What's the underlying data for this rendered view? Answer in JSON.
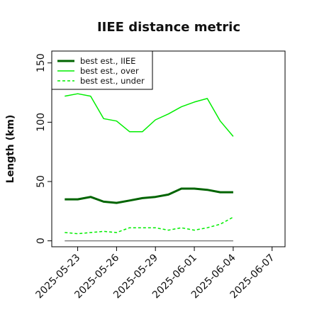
{
  "chart_data": {
    "type": "line",
    "title": "IIEE distance metric",
    "xlabel": "",
    "ylabel": "Length (km)",
    "x": [
      "2025-05-22",
      "2025-05-23",
      "2025-05-24",
      "2025-05-25",
      "2025-05-26",
      "2025-05-27",
      "2025-05-28",
      "2025-05-29",
      "2025-05-30",
      "2025-05-31",
      "2025-06-01",
      "2025-06-02",
      "2025-06-03",
      "2025-06-04"
    ],
    "xlim": [
      "2025-05-21",
      "2025-06-08"
    ],
    "xticks": [
      "2025-05-23",
      "2025-05-26",
      "2025-05-29",
      "2025-06-01",
      "2025-06-04",
      "2025-06-07"
    ],
    "ylim": [
      -5,
      160
    ],
    "yticks": [
      0,
      50,
      100,
      150
    ],
    "grid": false,
    "legend_position": "top-left",
    "baseline": {
      "y": 0,
      "x_from": "2025-05-22",
      "x_to": "2025-06-04",
      "color": "#808080"
    },
    "series": [
      {
        "name": "best est., IIEE",
        "color": "#006400",
        "style": "solid",
        "width": 3,
        "values": [
          35,
          35,
          37,
          33,
          32,
          34,
          36,
          37,
          39,
          44,
          44,
          43,
          41,
          41
        ]
      },
      {
        "name": "best est., over",
        "color": "#00ee00",
        "style": "solid",
        "width": 1.5,
        "values": [
          122,
          124,
          122,
          103,
          101,
          92,
          92,
          102,
          107,
          113,
          117,
          120,
          101,
          88
        ]
      },
      {
        "name": "best est., under",
        "color": "#00ee00",
        "style": "dashed",
        "width": 1.5,
        "values": [
          7,
          6,
          7,
          8,
          7,
          11,
          11,
          11,
          9,
          11,
          9,
          11,
          14,
          20
        ]
      }
    ]
  }
}
